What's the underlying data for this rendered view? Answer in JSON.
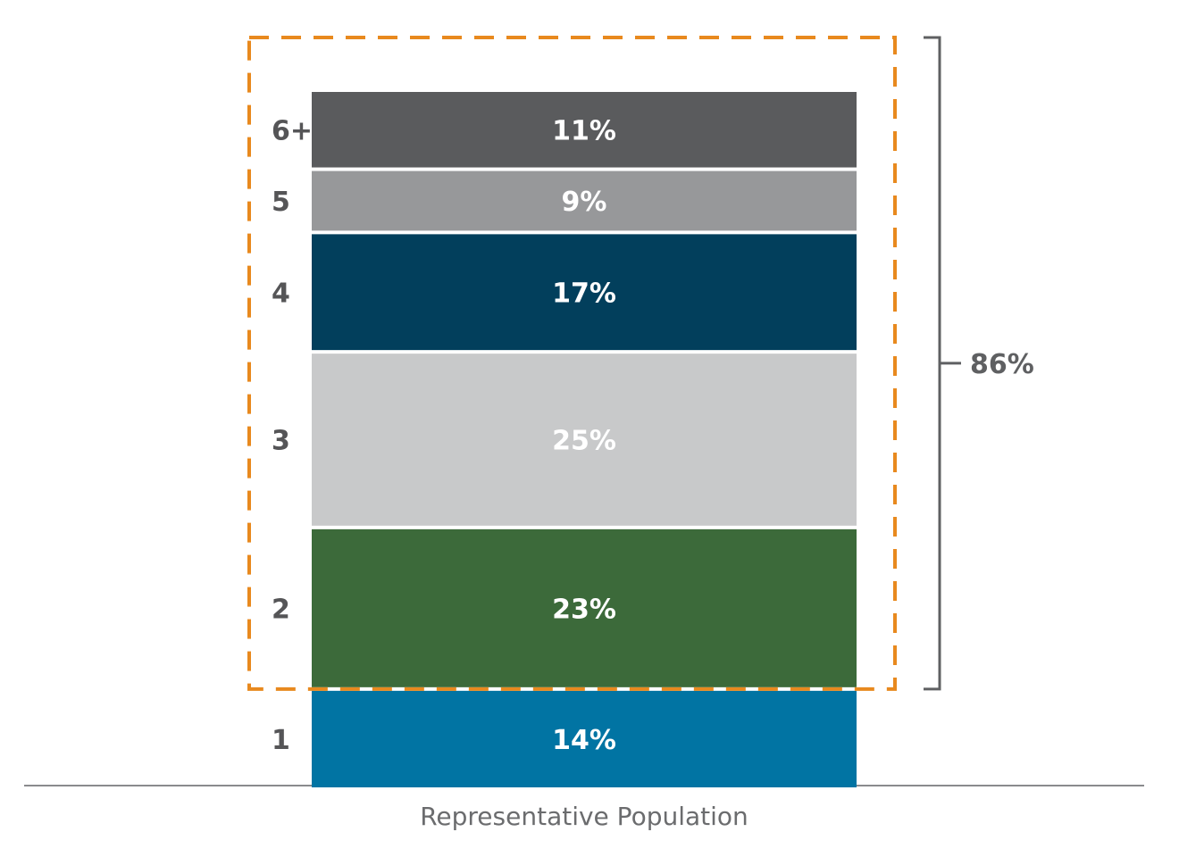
{
  "chart_data": {
    "type": "bar",
    "stacked": true,
    "categories": [
      "Representative Population"
    ],
    "series": [
      {
        "name": "1",
        "values": [
          14
        ],
        "label": "14%",
        "color": "#0174a3"
      },
      {
        "name": "2",
        "values": [
          23
        ],
        "label": "23%",
        "color": "#3c6a3a"
      },
      {
        "name": "3",
        "values": [
          25
        ],
        "label": "25%",
        "color": "#c8c9ca"
      },
      {
        "name": "4",
        "values": [
          17
        ],
        "label": "17%",
        "color": "#023f5c"
      },
      {
        "name": "5",
        "values": [
          9
        ],
        "label": "9%",
        "color": "#97989a"
      },
      {
        "name": "6+",
        "values": [
          11
        ],
        "label": "11%",
        "color": "#5a5b5d"
      }
    ],
    "bracket": {
      "label": "86%",
      "covers": [
        "2",
        "3",
        "4",
        "5",
        "6+"
      ],
      "color": "#5f6062"
    },
    "highlight": {
      "style": "dashed",
      "color": "#e8891e",
      "covers": [
        "2",
        "3",
        "4",
        "5",
        "6+"
      ]
    },
    "title": "",
    "xlabel": "",
    "ylabel": "",
    "grid": false
  }
}
